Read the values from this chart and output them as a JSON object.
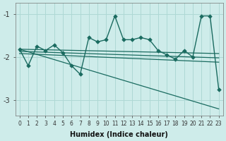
{
  "xlabel": "Humidex (Indice chaleur)",
  "bg_color": "#ceecea",
  "grid_color": "#aed8d4",
  "line_color": "#1a6b60",
  "xlim": [
    -0.5,
    23.5
  ],
  "ylim": [
    -3.35,
    -0.75
  ],
  "yticks": [
    -3,
    -2,
    -1
  ],
  "xticks": [
    0,
    1,
    2,
    3,
    4,
    5,
    6,
    7,
    8,
    9,
    10,
    11,
    12,
    13,
    14,
    15,
    16,
    17,
    18,
    19,
    20,
    21,
    22,
    23
  ],
  "series": [
    {
      "x": [
        0,
        23
      ],
      "y": [
        -1.82,
        -1.92
      ],
      "marker": null,
      "lw": 0.9
    },
    {
      "x": [
        0,
        23
      ],
      "y": [
        -1.87,
        -2.02
      ],
      "marker": null,
      "lw": 0.9
    },
    {
      "x": [
        0,
        23
      ],
      "y": [
        -1.92,
        -2.12
      ],
      "marker": null,
      "lw": 0.9
    },
    {
      "x": [
        0,
        1,
        2,
        3,
        4,
        5,
        6,
        7,
        8,
        9,
        10,
        11,
        12,
        13,
        14,
        15,
        16,
        17,
        18,
        19,
        20,
        21,
        22,
        23
      ],
      "y": [
        -1.82,
        -2.2,
        -1.75,
        -1.85,
        -1.72,
        -1.9,
        -2.2,
        -2.4,
        -1.55,
        -1.65,
        -1.6,
        -1.05,
        -1.6,
        -1.6,
        -1.55,
        -1.6,
        -1.85,
        -1.95,
        -2.05,
        -1.85,
        -2.0,
        -1.05,
        -1.05,
        -2.75
      ],
      "marker": "D",
      "lw": 1.0
    },
    {
      "x": [
        0,
        23
      ],
      "y": [
        -1.82,
        -3.2
      ],
      "marker": null,
      "lw": 0.9
    }
  ]
}
